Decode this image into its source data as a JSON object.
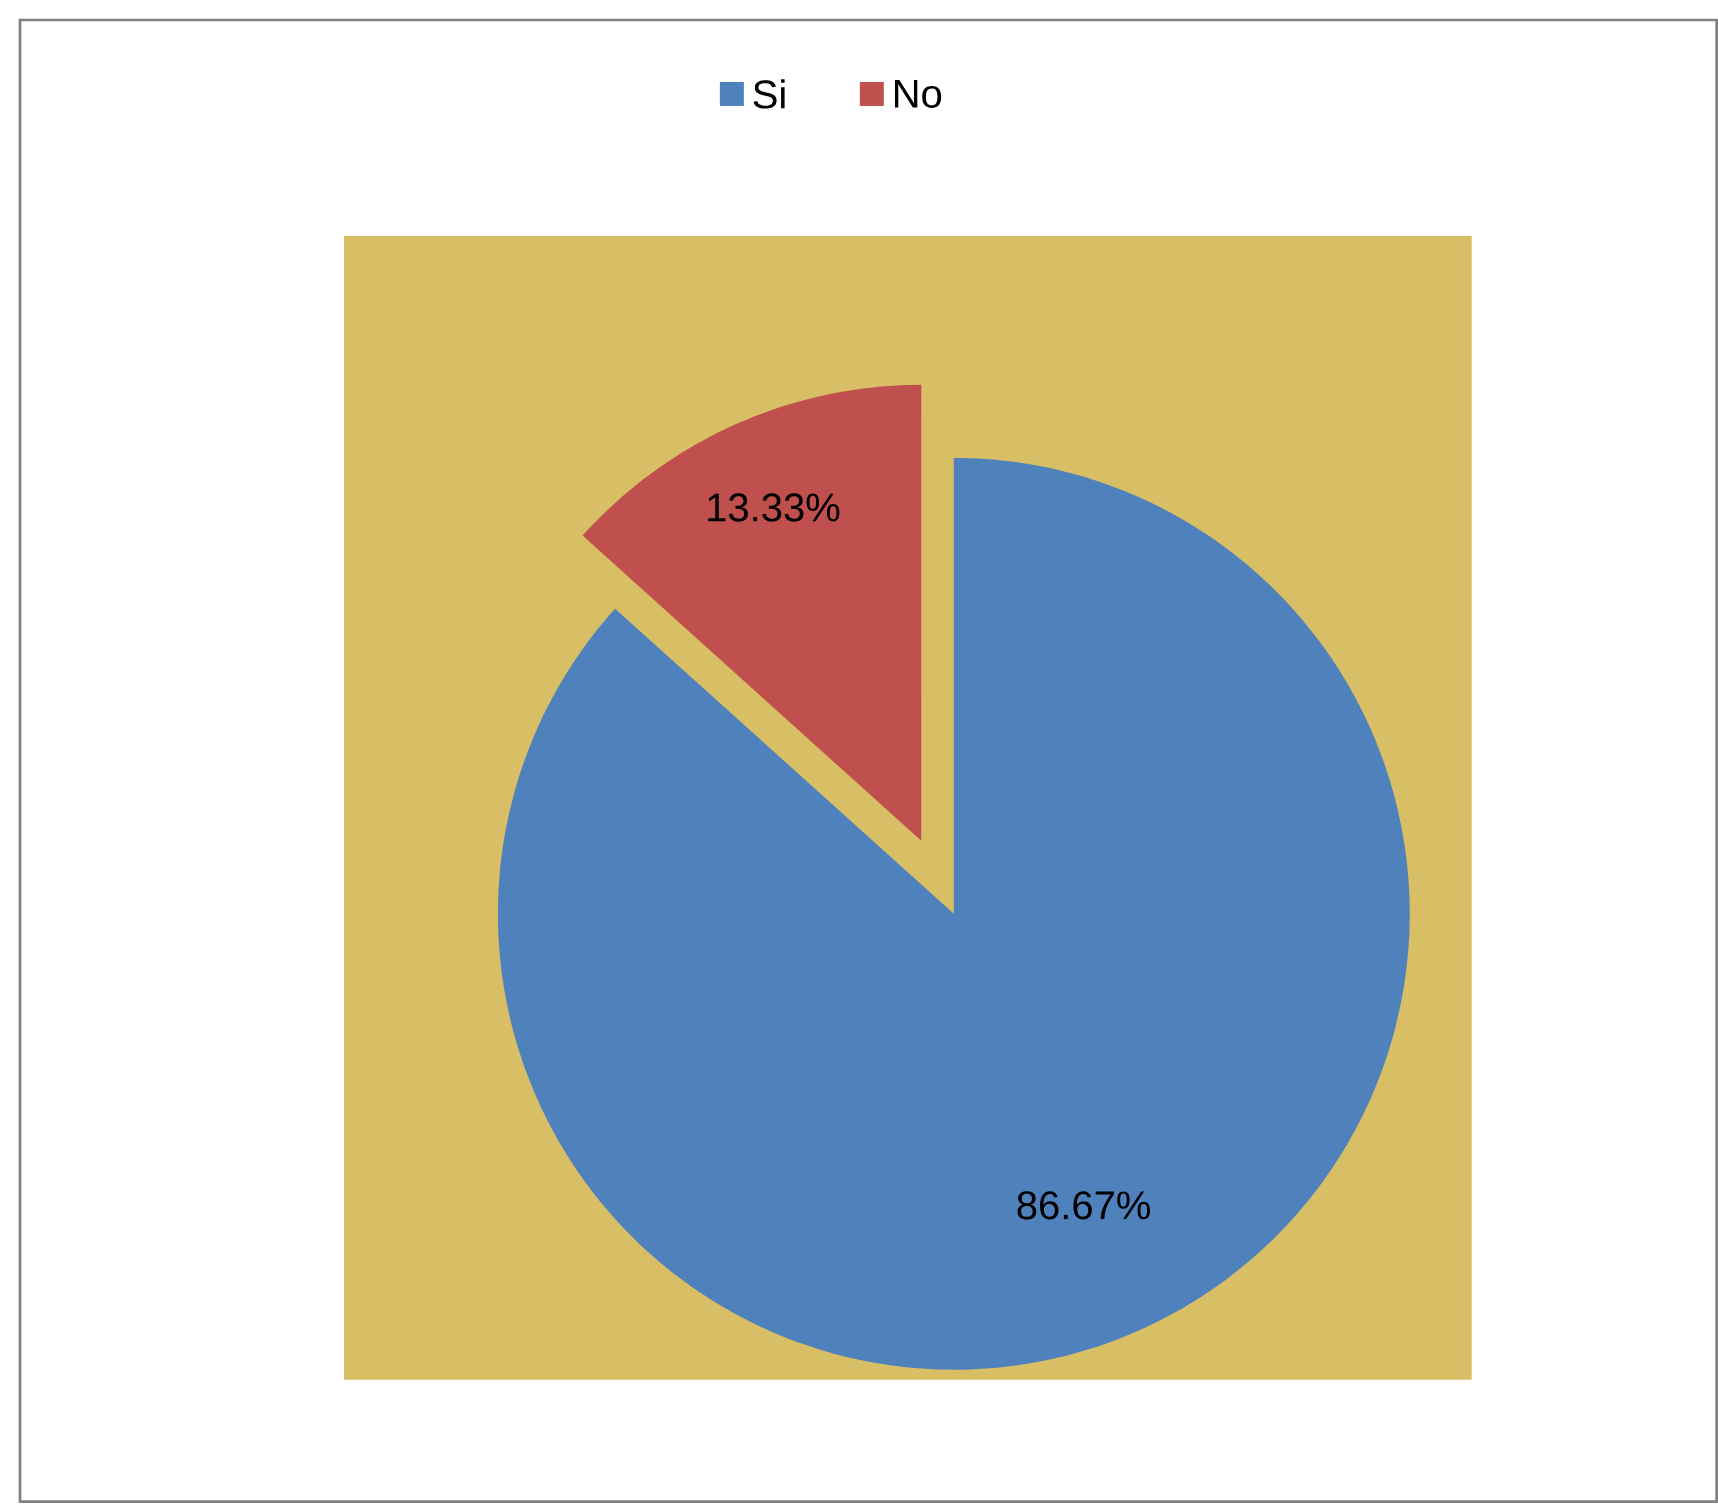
{
  "chart_data": {
    "type": "pie",
    "categories": [
      "Si",
      "No"
    ],
    "values": [
      86.67,
      13.33
    ],
    "colors": [
      "#4f81bd",
      "#c0504d"
    ],
    "value_labels": [
      "86.67%",
      "13.33%"
    ],
    "legend": "top"
  }
}
